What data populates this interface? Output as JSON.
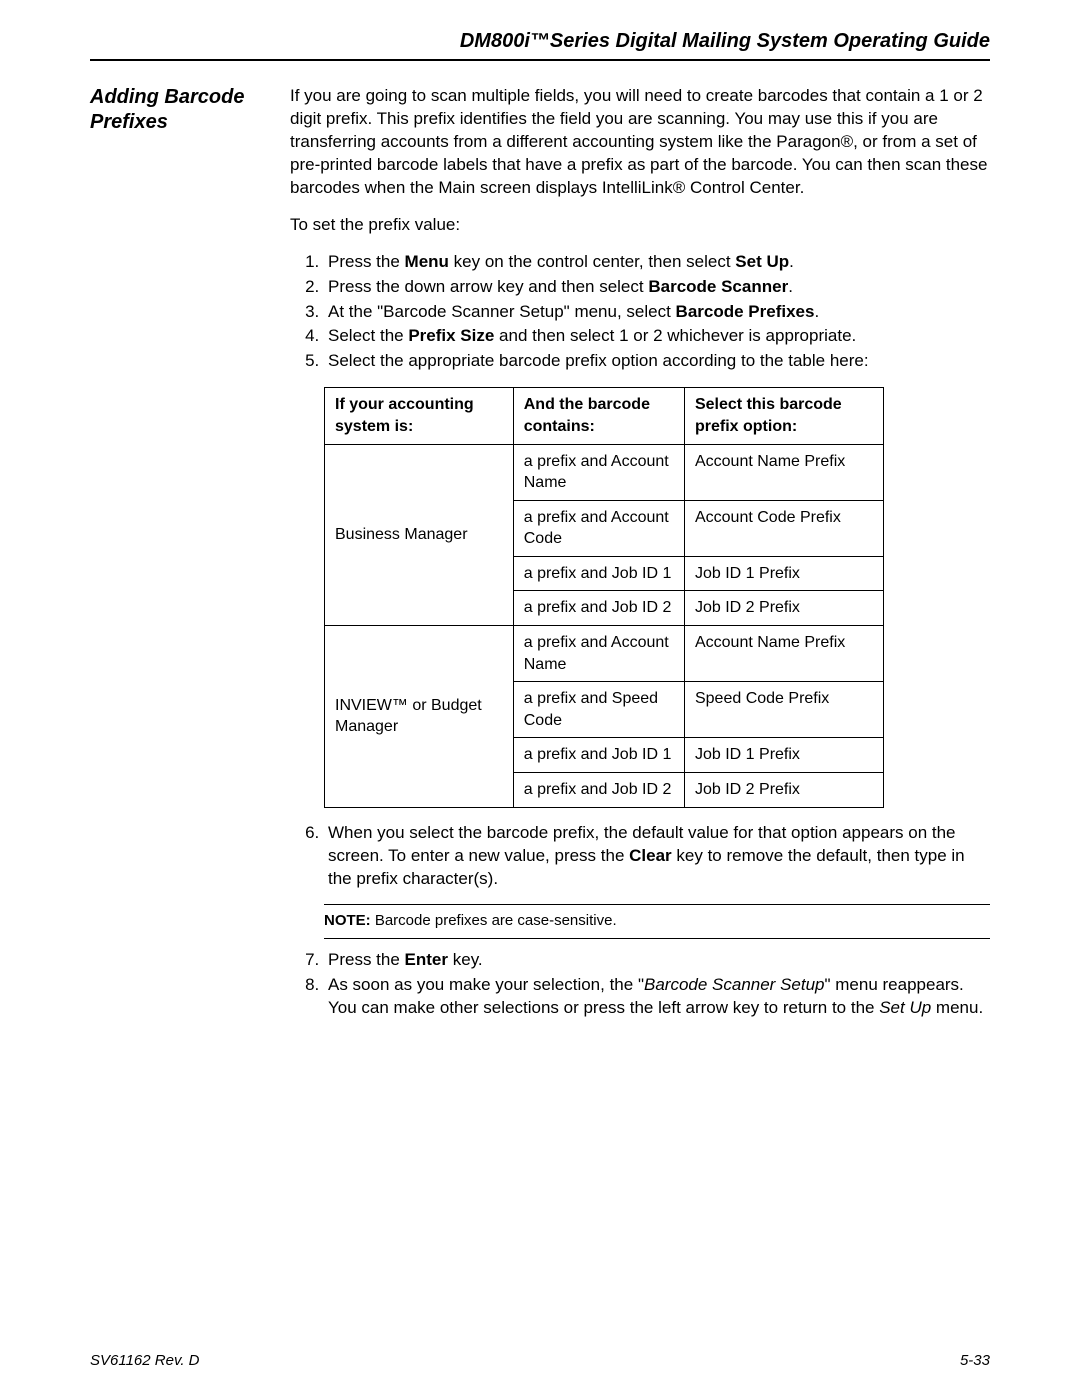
{
  "header": {
    "title": "DM800i™Series Digital Mailing System Operating Guide"
  },
  "side_heading": "Adding Barcode Prefixes",
  "intro": "If you are going to scan multiple fields, you will need to create barcodes that contain a 1 or 2 digit prefix. This prefix identifies the field you are scanning. You may use this if you are transferring accounts from a different accounting system like the Paragon®, or from a set of pre-printed barcode labels that have a prefix as part of the barcode. You can then scan these barcodes when the Main screen displays IntelliLink® Control Center.",
  "set_prefix_lead": "To set the prefix value:",
  "steps_a": {
    "s1_a": "Press the ",
    "s1_b": "Menu",
    "s1_c": " key on the control center, then select ",
    "s1_d": "Set Up",
    "s1_e": ".",
    "s2_a": "Press the down arrow key and then select ",
    "s2_b": "Barcode Scanner",
    "s2_c": ".",
    "s3_a": "At the \"Barcode Scanner Setup\" menu, select ",
    "s3_b": "Barcode Prefixes",
    "s3_c": ".",
    "s4_a": "Select the ",
    "s4_b": "Prefix Size",
    "s4_c": " and then select 1 or 2 whichever is appropriate.",
    "s5": "Select the appropriate barcode prefix option according to the table here:"
  },
  "table": {
    "type": "table",
    "border_color": "#000000",
    "font_size": 16,
    "columns": [
      "If your accounting system is:",
      "And the barcode contains:",
      "Select this barcode prefix option:"
    ],
    "groups": [
      {
        "system": "Business Manager",
        "rows": [
          {
            "contains": "a prefix and Account Name",
            "option": "Account Name Prefix"
          },
          {
            "contains": "a prefix and Account Code",
            "option": "Account Code Prefix"
          },
          {
            "contains": "a prefix and Job ID 1",
            "option": "Job ID 1 Prefix"
          },
          {
            "contains": "a prefix and Job ID 2",
            "option": "Job ID 2 Prefix"
          }
        ]
      },
      {
        "system": "INVIEW™ or Budget Manager",
        "rows": [
          {
            "contains": "a prefix and Account Name",
            "option": "Account Name Prefix"
          },
          {
            "contains": "a prefix and Speed Code",
            "option": "Speed Code Prefix"
          },
          {
            "contains": "a prefix and Job ID 1",
            "option": "Job ID 1 Prefix"
          },
          {
            "contains": "a prefix and Job ID 2",
            "option": "Job ID 2 Prefix"
          }
        ]
      }
    ]
  },
  "steps_b": {
    "s6_a": "When you select the barcode prefix, the default value for that option appears on the screen. To enter a new value, press the ",
    "s6_b": "Clear",
    "s6_c": " key to remove the default, then type in the prefix character(s).",
    "note_label": "NOTE:",
    "note_text": "  Barcode prefixes are case-sensitive.",
    "s7_a": "Press the ",
    "s7_b": "Enter",
    "s7_c": " key.",
    "s8_a": "As soon as you make your selection, the \"",
    "s8_b": "Barcode Scanner Setup",
    "s8_c": "\" menu reappears. You can make other selections or press the left arrow key to return to the ",
    "s8_d": "Set Up",
    "s8_e": " menu."
  },
  "footer": {
    "left": "SV61162 Rev. D",
    "right": "5-33"
  }
}
